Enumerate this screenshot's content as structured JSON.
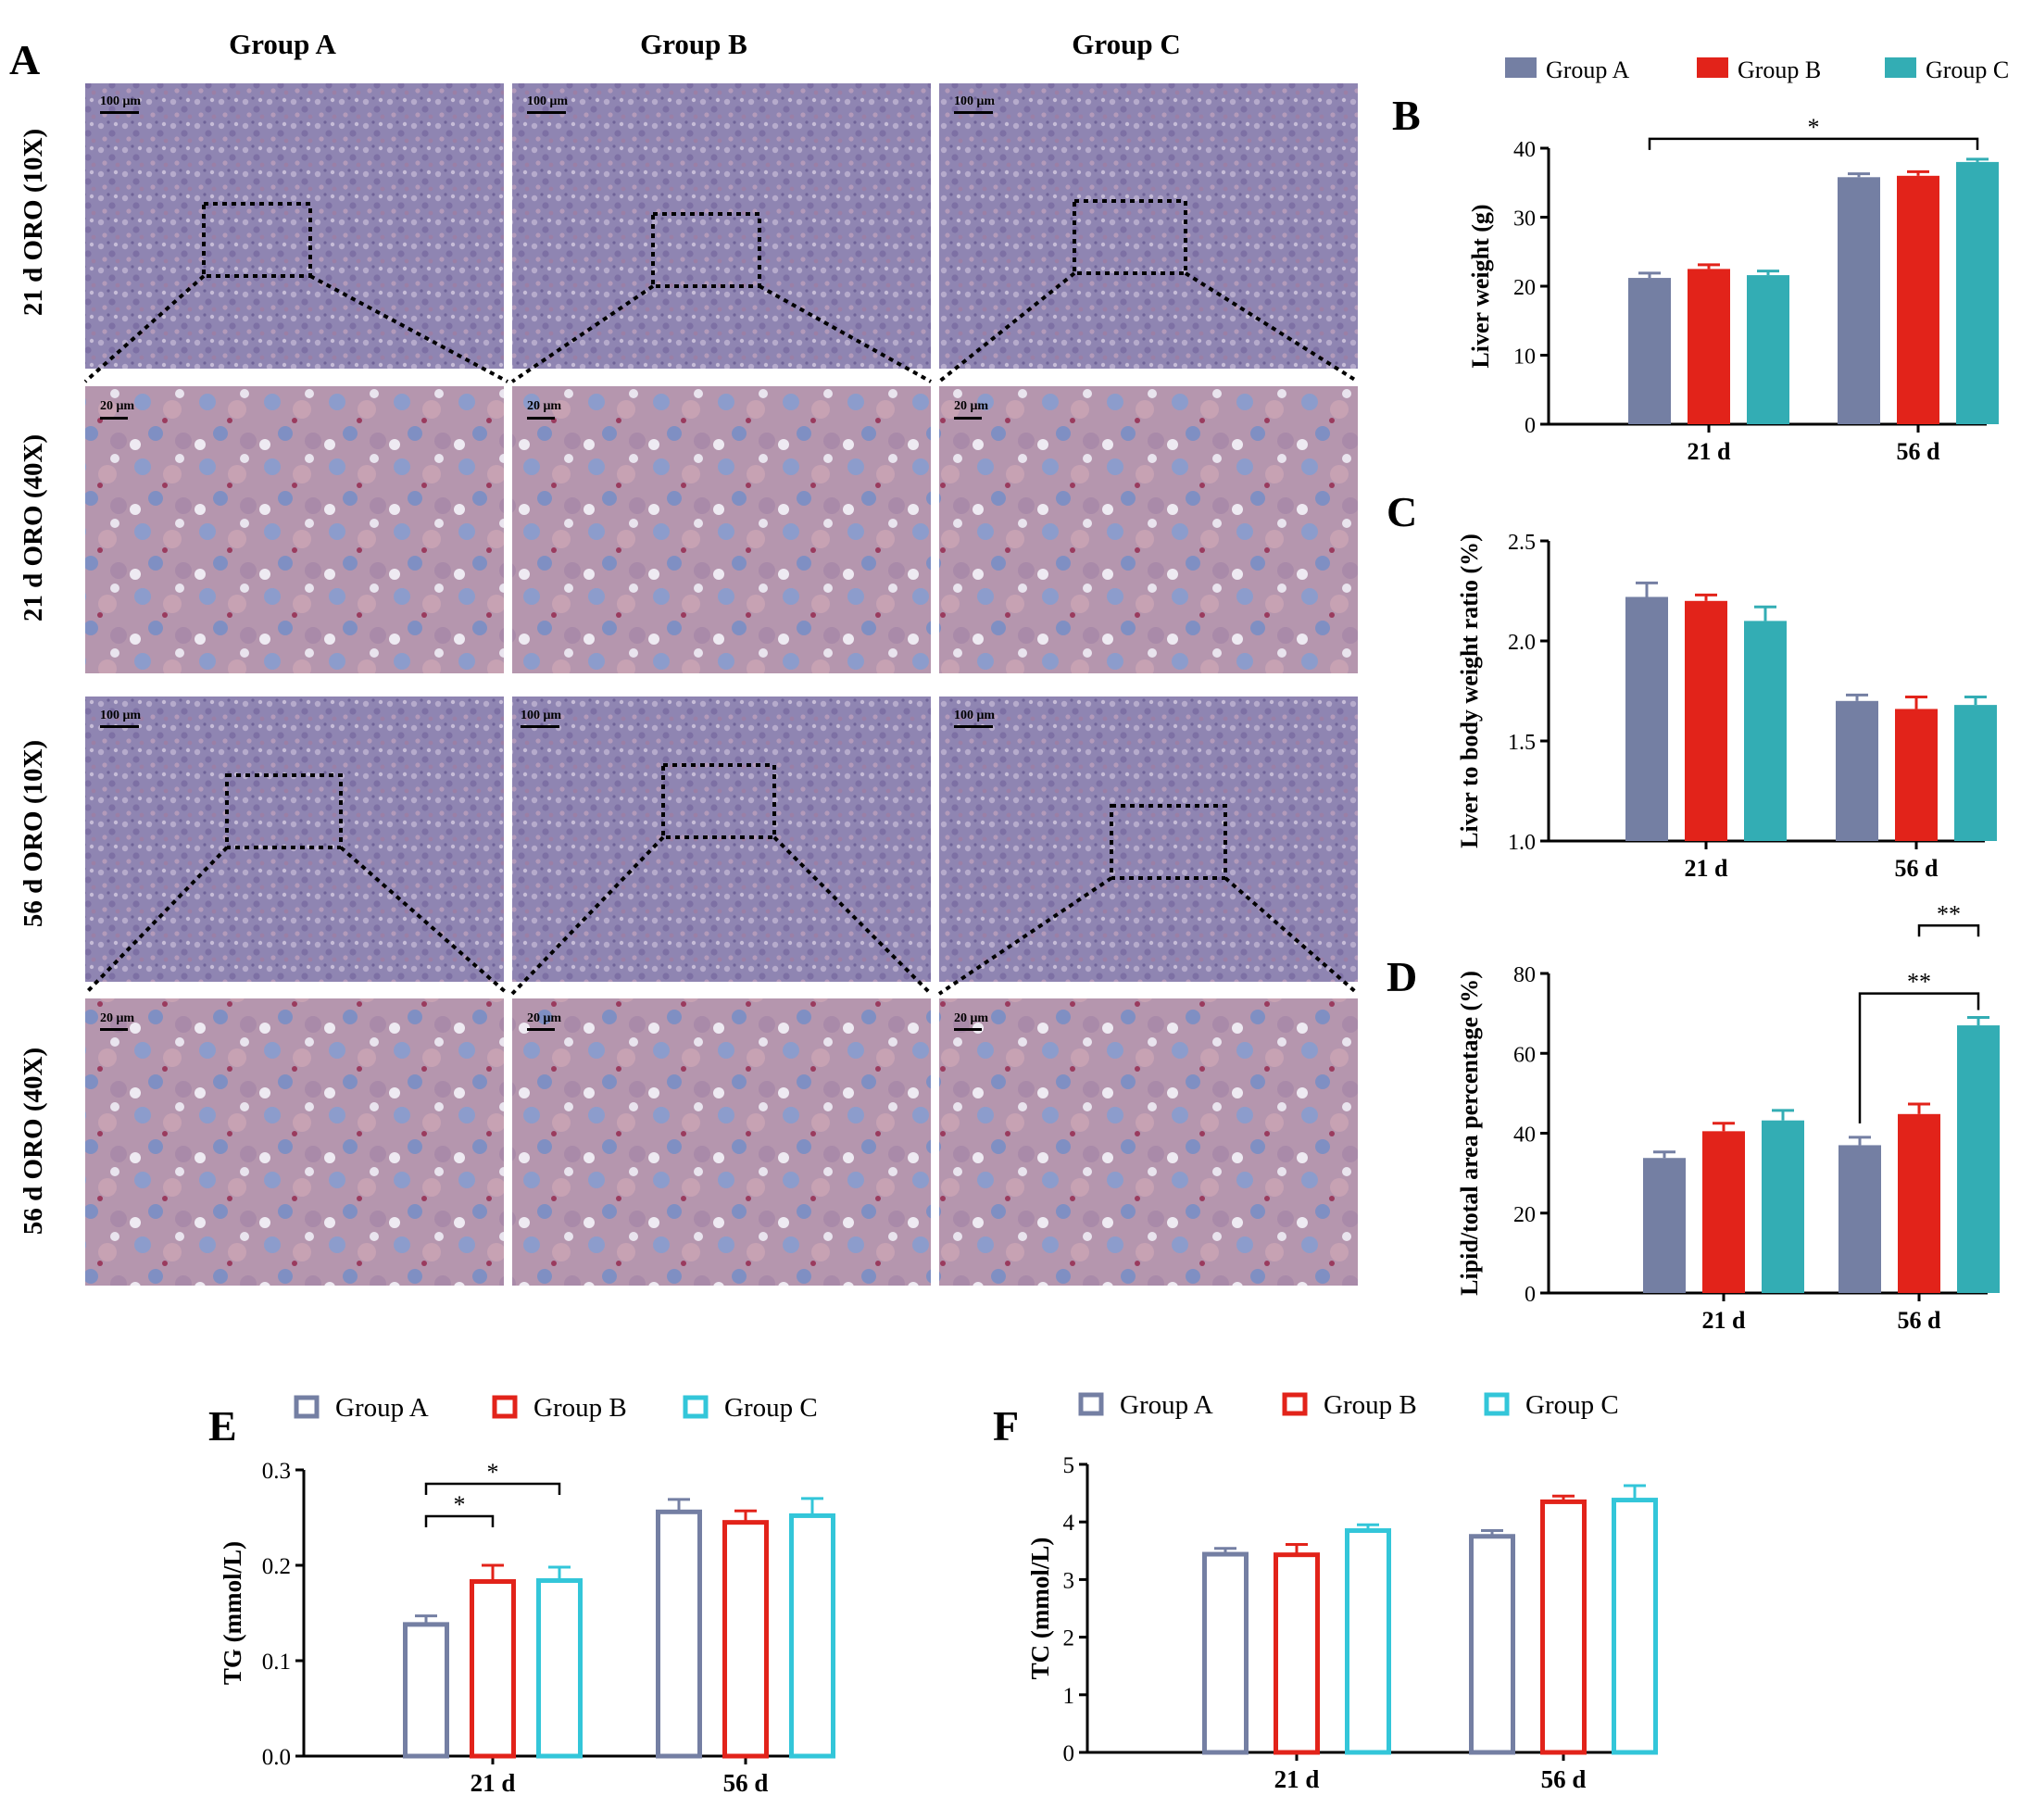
{
  "colors": {
    "group_a": "#747fa3",
    "group_b": "#e2231a",
    "group_c": "#33adb4",
    "cyan_open": "#33c6d9"
  },
  "micrographs": {
    "panel_label": "A",
    "column_headers": [
      "Group A",
      "Group B",
      "Group C"
    ],
    "row_labels": [
      "21 d ORO (10X)",
      "21 d ORO (40X)",
      "56 d ORO (10X)",
      "56 d ORO (40X)"
    ],
    "scale_bar_10x": "100 μm",
    "scale_bar_40x": "20 μm"
  },
  "chart_data": [
    {
      "panel": "B",
      "type": "bar",
      "style": "filled",
      "categories": [
        "21 d",
        "56 d"
      ],
      "ylabel": "Liver weight (g)",
      "ylim": [
        0,
        40
      ],
      "yticks": [
        "0",
        "10",
        "20",
        "30",
        "40"
      ],
      "legend": [
        "Group A",
        "Group B",
        "Group C"
      ],
      "legend_position": "top",
      "series": [
        {
          "name": "Group A",
          "values": [
            21.2,
            35.8
          ],
          "errors": [
            0.7,
            0.5
          ]
        },
        {
          "name": "Group B",
          "values": [
            22.5,
            36.0
          ],
          "errors": [
            0.6,
            0.6
          ]
        },
        {
          "name": "Group C",
          "values": [
            21.6,
            38.0
          ],
          "errors": [
            0.6,
            0.4
          ]
        }
      ],
      "annotations": [
        {
          "text": "*",
          "from": {
            "category": 0,
            "series": 0
          },
          "to": {
            "category": 1,
            "series": 2
          }
        }
      ]
    },
    {
      "panel": "C",
      "type": "bar",
      "style": "filled",
      "categories": [
        "21 d",
        "56 d"
      ],
      "ylabel": "Liver to body weight ratio (%)",
      "ylim": [
        1.0,
        2.5
      ],
      "yticks": [
        "1.0",
        "1.5",
        "2.0",
        "2.5"
      ],
      "series": [
        {
          "name": "Group A",
          "values": [
            2.22,
            1.7
          ],
          "errors": [
            0.07,
            0.03
          ]
        },
        {
          "name": "Group B",
          "values": [
            2.2,
            1.66
          ],
          "errors": [
            0.03,
            0.06
          ]
        },
        {
          "name": "Group C",
          "values": [
            2.1,
            1.68
          ],
          "errors": [
            0.07,
            0.04
          ]
        }
      ]
    },
    {
      "panel": "D",
      "type": "bar",
      "style": "filled",
      "categories": [
        "21 d",
        "56 d"
      ],
      "ylabel": "Lipid/total area percentage (%)",
      "ylim": [
        0,
        80
      ],
      "yticks": [
        "0",
        "20",
        "40",
        "60",
        "80"
      ],
      "series": [
        {
          "name": "Group A",
          "values": [
            33.8,
            37.0
          ],
          "errors": [
            1.5,
            2.0
          ]
        },
        {
          "name": "Group B",
          "values": [
            40.5,
            44.8
          ],
          "errors": [
            2.0,
            2.5
          ]
        },
        {
          "name": "Group C",
          "values": [
            43.2,
            67.0
          ],
          "errors": [
            2.5,
            2.0
          ]
        }
      ],
      "annotations": [
        {
          "text": "**",
          "from": {
            "category": 1,
            "series": 0
          },
          "to": {
            "category": 1,
            "series": 2
          }
        },
        {
          "text": "**",
          "from": {
            "category": 1,
            "series": 1
          },
          "to": {
            "category": 1,
            "series": 2
          }
        }
      ]
    },
    {
      "panel": "E",
      "type": "bar",
      "style": "open",
      "categories": [
        "21 d",
        "56 d"
      ],
      "ylabel": "TG (mmol/L)",
      "ylim": [
        0,
        0.3
      ],
      "yticks": [
        "0.0",
        "0.1",
        "0.2",
        "0.3"
      ],
      "legend": [
        "Group A",
        "Group B",
        "Group C"
      ],
      "legend_position": "top",
      "series": [
        {
          "name": "Group A",
          "values": [
            0.138,
            0.256
          ],
          "errors": [
            0.009,
            0.013
          ]
        },
        {
          "name": "Group B",
          "values": [
            0.183,
            0.245
          ],
          "errors": [
            0.017,
            0.012
          ]
        },
        {
          "name": "Group C",
          "values": [
            0.184,
            0.252
          ],
          "errors": [
            0.014,
            0.018
          ]
        }
      ],
      "annotations": [
        {
          "text": "*",
          "from": {
            "category": 0,
            "series": 0
          },
          "to": {
            "category": 0,
            "series": 1
          }
        },
        {
          "text": "*",
          "from": {
            "category": 0,
            "series": 0
          },
          "to": {
            "category": 0,
            "series": 2
          }
        }
      ]
    },
    {
      "panel": "F",
      "type": "bar",
      "style": "open",
      "categories": [
        "21 d",
        "56 d"
      ],
      "ylabel": "TC (mmol/L)",
      "ylim": [
        0,
        5
      ],
      "yticks": [
        "0",
        "1",
        "2",
        "3",
        "4",
        "5"
      ],
      "legend": [
        "Group A",
        "Group B",
        "Group C"
      ],
      "legend_position": "top",
      "series": [
        {
          "name": "Group A",
          "values": [
            3.44,
            3.75
          ],
          "errors": [
            0.1,
            0.1
          ]
        },
        {
          "name": "Group B",
          "values": [
            3.43,
            4.35
          ],
          "errors": [
            0.18,
            0.1
          ]
        },
        {
          "name": "Group C",
          "values": [
            3.85,
            4.38
          ],
          "errors": [
            0.1,
            0.25
          ]
        }
      ]
    }
  ]
}
